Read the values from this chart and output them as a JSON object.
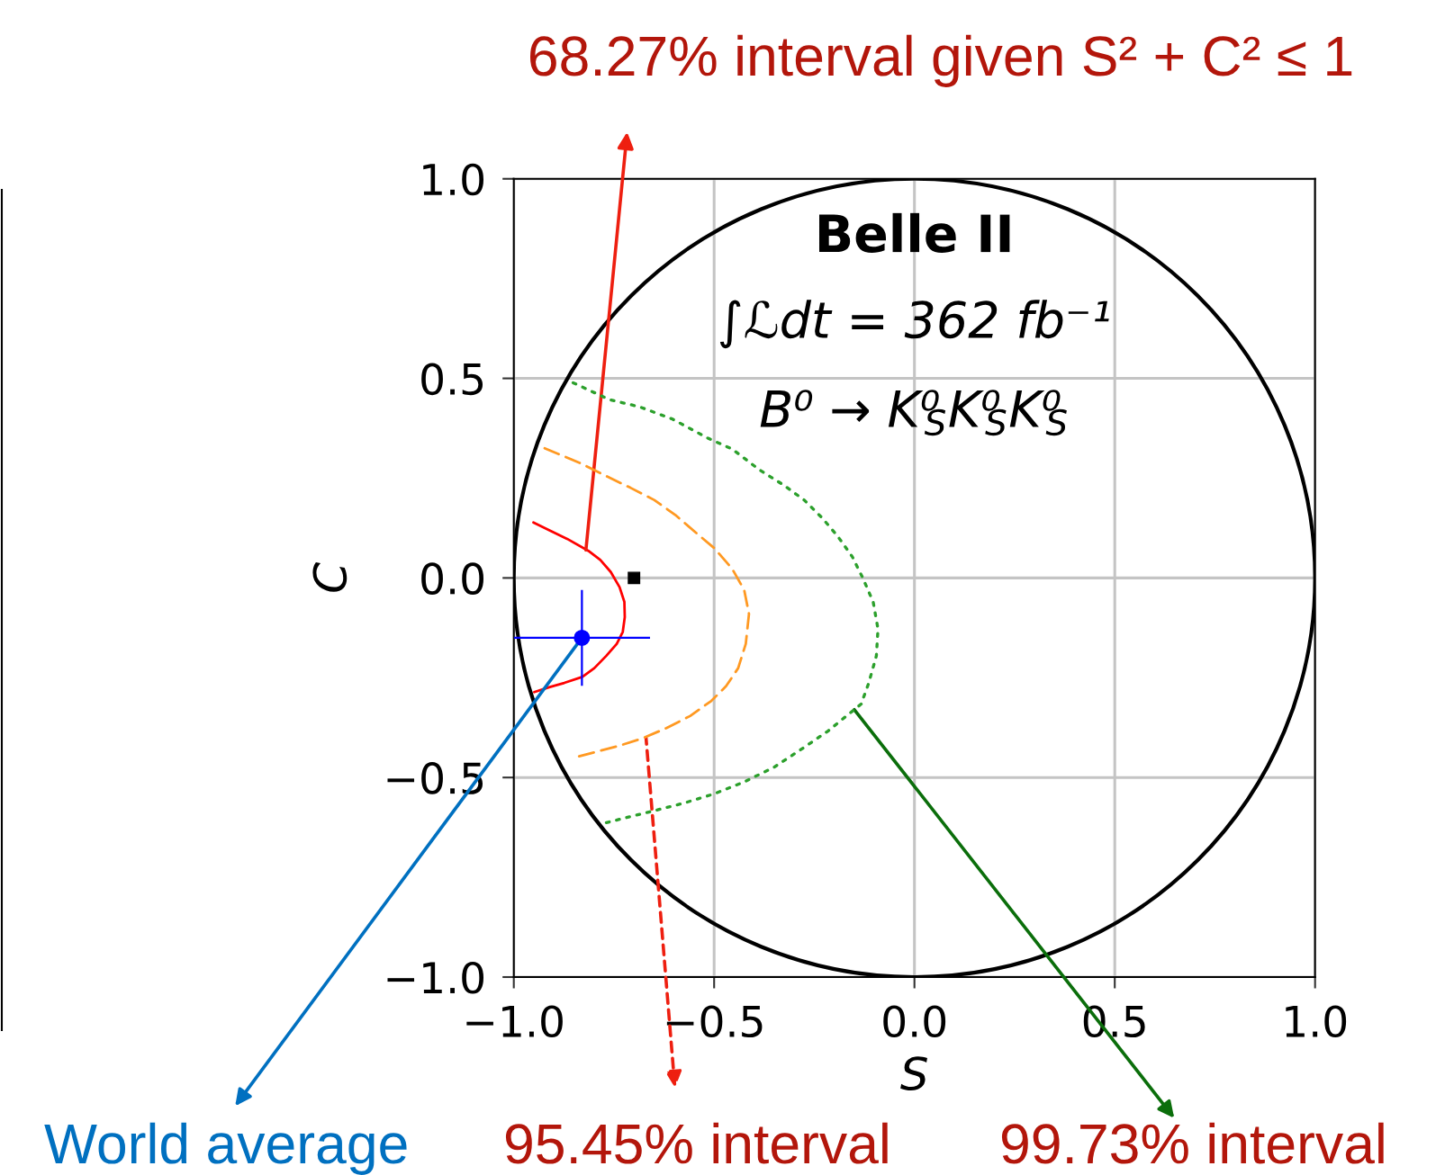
{
  "chart_data": {
    "type": "line",
    "xlabel": "S",
    "ylabel": "C",
    "annotations": [
      "Belle II",
      "∫ℒdt = 362 fb⁻¹",
      "B⁰ → K⁰$_{S}$K⁰$_{S}$K⁰$_{S}$",
      {
        "text": "68.27% interval given S² + C² ≤ 1",
        "x": -0.82,
        "y": 0.07
      },
      {
        "text": "95.45% interval",
        "x": -0.67,
        "y": -0.4
      },
      {
        "text": "99.73% interval",
        "x": -0.15,
        "y": -0.33
      },
      {
        "text": "World average",
        "x": -0.83,
        "y": -0.15
      }
    ],
    "xlim": [
      -1,
      1
    ],
    "ylim": [
      -1,
      1
    ],
    "xticks": [
      {
        "value": -1,
        "label": "−1.0"
      },
      {
        "value": -0.5,
        "label": "−0.5"
      },
      {
        "value": 0,
        "label": "0.0"
      },
      {
        "value": 0.5,
        "label": "0.5"
      },
      {
        "value": 1,
        "label": "1.0"
      }
    ],
    "yticks": [
      {
        "value": -1,
        "label": "−1.0"
      },
      {
        "value": -0.5,
        "label": "−0.5"
      },
      {
        "value": 0,
        "label": "0.0"
      },
      {
        "value": 0.5,
        "label": "0.5"
      },
      {
        "value": 1,
        "label": "1.0"
      }
    ],
    "grid": true,
    "series": [
      {
        "color": "#ff0000",
        "line_style": "solid",
        "x": [
          -0.951,
          -0.912,
          -0.867,
          -0.814,
          -0.784,
          -0.758,
          -0.736,
          -0.724,
          -0.723,
          -0.728,
          -0.743,
          -0.769,
          -0.799,
          -0.829,
          -0.874,
          -0.912,
          -0.949
        ],
        "values": [
          0.139,
          0.12,
          0.098,
          0.068,
          0.045,
          0.015,
          -0.023,
          -0.06,
          -0.098,
          -0.135,
          -0.165,
          -0.195,
          -0.226,
          -0.248,
          -0.263,
          -0.274,
          -0.286
        ]
      },
      {
        "color": "#ff9922",
        "line_style": "dashed",
        "x": [
          -0.923,
          -0.837,
          -0.777,
          -0.709,
          -0.649,
          -0.597,
          -0.545,
          -0.5,
          -0.455,
          -0.425,
          -0.413,
          -0.421,
          -0.44,
          -0.47,
          -0.507,
          -0.56,
          -0.619,
          -0.679,
          -0.739,
          -0.837
        ],
        "values": [
          0.325,
          0.289,
          0.259,
          0.226,
          0.195,
          0.158,
          0.113,
          0.075,
          0.023,
          -0.03,
          -0.09,
          -0.165,
          -0.226,
          -0.271,
          -0.308,
          -0.346,
          -0.376,
          -0.402,
          -0.421,
          -0.447
        ]
      },
      {
        "color": "#2ca02c",
        "line_style": "dotted",
        "x": [
          -0.852,
          -0.762,
          -0.687,
          -0.604,
          -0.515,
          -0.455,
          -0.387,
          -0.327,
          -0.275,
          -0.23,
          -0.192,
          -0.155,
          -0.129,
          -0.103,
          -0.091,
          -0.095,
          -0.114,
          -0.133,
          -0.17,
          -0.215,
          -0.282,
          -0.35,
          -0.425,
          -0.5,
          -0.575,
          -0.649,
          -0.709,
          -0.769
        ],
        "values": [
          0.489,
          0.447,
          0.429,
          0.398,
          0.35,
          0.323,
          0.271,
          0.233,
          0.195,
          0.15,
          0.105,
          0.053,
          0.0,
          -0.06,
          -0.128,
          -0.195,
          -0.263,
          -0.316,
          -0.346,
          -0.383,
          -0.429,
          -0.474,
          -0.511,
          -0.541,
          -0.564,
          -0.583,
          -0.598,
          -0.613
        ]
      },
      {
        "type": "scatter",
        "color": "#000000",
        "marker": "square",
        "x": [
          -0.7
        ],
        "values": [
          0.0
        ]
      },
      {
        "type": "scatter",
        "color": "#0000ff",
        "marker": "circle",
        "x": [
          -0.83
        ],
        "values": [
          -0.15
        ],
        "errors": [
          0.12
        ],
        "xerrors": [
          0.17
        ]
      }
    ]
  }
}
